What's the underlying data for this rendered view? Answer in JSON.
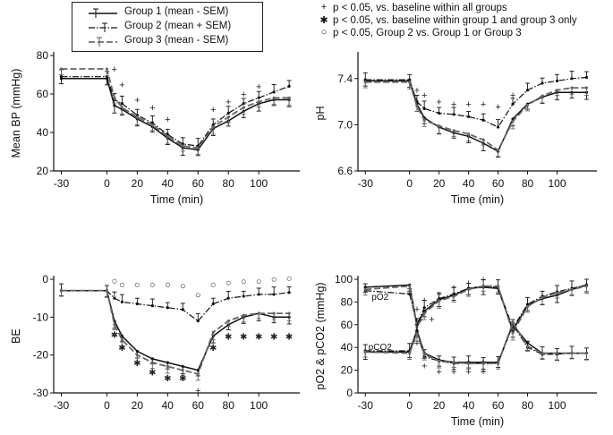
{
  "legend": {
    "items": [
      {
        "label": "Group 1 (mean  - SEM)",
        "style": "solid"
      },
      {
        "label": "Group 2 (mean  + SEM)",
        "style": "dashdot"
      },
      {
        "label": "Group 3 (mean  - SEM)",
        "style": "dashed"
      }
    ]
  },
  "significance_key": [
    {
      "symbol": "+",
      "label": "p < 0.05, vs. baseline within all groups"
    },
    {
      "symbol": "✱",
      "label": "p < 0.05, vs. baseline within group 1 and group 3 only"
    },
    {
      "symbol": "○",
      "label": "p < 0.05, Group 2 vs. Group 1 or Group 3"
    }
  ],
  "chart_data": [
    {
      "id": "bp",
      "type": "line",
      "xlabel": "Time (min)",
      "ylabel": "Mean BP (mmHg)",
      "xlim": [
        -35,
        127
      ],
      "ylim": [
        20,
        80
      ],
      "xticks": [
        -30,
        0,
        20,
        40,
        60,
        80,
        100
      ],
      "yticks": [
        20,
        40,
        60,
        80
      ],
      "x": [
        -30,
        0,
        5,
        10,
        20,
        30,
        40,
        50,
        60,
        70,
        80,
        90,
        100,
        110,
        120
      ],
      "series": [
        {
          "name": "Group 1",
          "values": [
            68,
            68,
            54,
            52,
            47,
            43,
            37,
            32,
            31,
            42,
            46,
            51,
            55,
            57,
            57
          ]
        },
        {
          "name": "Group 2",
          "values": [
            69,
            69,
            57,
            55,
            49,
            45,
            39,
            34,
            33,
            44,
            50,
            55,
            58,
            61,
            64
          ]
        },
        {
          "name": "Group 3",
          "values": [
            73,
            73,
            58,
            53,
            48,
            44,
            38,
            33,
            32,
            43,
            48,
            53,
            56,
            58,
            58
          ]
        }
      ],
      "annotations": [
        {
          "x": 5,
          "y": 73,
          "symbol": "+"
        },
        {
          "x": 10,
          "y": 65,
          "symbol": "+"
        },
        {
          "x": 20,
          "y": 57,
          "symbol": "+"
        },
        {
          "x": 30,
          "y": 53,
          "symbol": "+"
        },
        {
          "x": 40,
          "y": 47,
          "symbol": "+"
        },
        {
          "x": 70,
          "y": 52,
          "symbol": "+"
        },
        {
          "x": 80,
          "y": 56,
          "symbol": "+"
        },
        {
          "x": 90,
          "y": 60,
          "symbol": "+"
        },
        {
          "x": 100,
          "y": 64,
          "symbol": "+"
        }
      ]
    },
    {
      "id": "ph",
      "type": "line",
      "xlabel": "Time (min)",
      "ylabel": "pH",
      "xlim": [
        -35,
        127
      ],
      "ylim": [
        6.6,
        7.6
      ],
      "xticks": [
        -30,
        0,
        20,
        40,
        60,
        80,
        100
      ],
      "yticks": [
        6.6,
        7.0,
        7.4
      ],
      "x": [
        -30,
        0,
        5,
        10,
        20,
        30,
        40,
        50,
        60,
        70,
        80,
        90,
        100,
        110,
        120
      ],
      "series": [
        {
          "name": "Group 1",
          "values": [
            7.38,
            7.38,
            7.18,
            7.06,
            6.98,
            6.93,
            6.9,
            6.84,
            6.77,
            7.05,
            7.18,
            7.24,
            7.28,
            7.28,
            7.28
          ]
        },
        {
          "name": "Group 2",
          "values": [
            7.39,
            7.39,
            7.2,
            7.14,
            7.1,
            7.09,
            7.07,
            7.04,
            6.98,
            7.18,
            7.3,
            7.36,
            7.38,
            7.4,
            7.41
          ]
        },
        {
          "name": "Group 3",
          "values": [
            7.37,
            7.37,
            7.16,
            7.04,
            6.99,
            6.95,
            6.92,
            6.87,
            6.78,
            7.03,
            7.17,
            7.25,
            7.3,
            7.32,
            7.32
          ]
        }
      ],
      "annotations": [
        {
          "x": 5,
          "y": 7.3,
          "symbol": "+"
        },
        {
          "x": 10,
          "y": 7.26,
          "symbol": "+"
        },
        {
          "x": 20,
          "y": 7.2,
          "symbol": "+"
        },
        {
          "x": 30,
          "y": 7.18,
          "symbol": "+"
        },
        {
          "x": 40,
          "y": 7.18,
          "symbol": "+"
        },
        {
          "x": 50,
          "y": 7.18,
          "symbol": "+"
        },
        {
          "x": 60,
          "y": 7.16,
          "symbol": "+"
        },
        {
          "x": 70,
          "y": 7.26,
          "symbol": "+"
        }
      ]
    },
    {
      "id": "be",
      "type": "line",
      "xlabel": "",
      "ylabel": "BE",
      "xlim": [
        -35,
        127
      ],
      "ylim": [
        -30,
        0
      ],
      "xticks": [
        -30,
        0,
        20,
        40,
        60,
        80,
        100
      ],
      "yticks": [
        -30,
        -20,
        -10,
        0
      ],
      "x": [
        -30,
        0,
        5,
        10,
        20,
        30,
        40,
        50,
        60,
        70,
        80,
        90,
        100,
        110,
        120
      ],
      "series": [
        {
          "name": "Group 1",
          "values": [
            -3,
            -3,
            -11,
            -15,
            -19,
            -21,
            -22,
            -23,
            -24,
            -15,
            -12,
            -10,
            -9,
            -10,
            -10
          ]
        },
        {
          "name": "Group 2",
          "values": [
            -3,
            -3,
            -5,
            -6,
            -6.5,
            -7,
            -7.5,
            -8,
            -11,
            -6.5,
            -5,
            -4.5,
            -4,
            -4,
            -3.5
          ]
        },
        {
          "name": "Group 3",
          "values": [
            -3,
            -3,
            -12,
            -16,
            -20,
            -22,
            -23,
            -24,
            -25,
            -14,
            -11,
            -9.5,
            -9,
            -9,
            -9
          ]
        }
      ],
      "annotations": [
        {
          "x": 5,
          "y": -0.3,
          "symbol": "○"
        },
        {
          "x": 10,
          "y": -1.3,
          "symbol": "○"
        },
        {
          "x": 20,
          "y": -1.3,
          "symbol": "○"
        },
        {
          "x": 30,
          "y": -1.3,
          "symbol": "○"
        },
        {
          "x": 40,
          "y": -1.3,
          "symbol": "○"
        },
        {
          "x": 50,
          "y": -1.6,
          "symbol": "○"
        },
        {
          "x": 60,
          "y": -4,
          "symbol": "○"
        },
        {
          "x": 70,
          "y": -1.3,
          "symbol": "○"
        },
        {
          "x": 80,
          "y": -0.8,
          "symbol": "○"
        },
        {
          "x": 90,
          "y": -0.5,
          "symbol": "○"
        },
        {
          "x": 100,
          "y": -0.5,
          "symbol": "○"
        },
        {
          "x": 110,
          "y": 0.1,
          "symbol": "○"
        },
        {
          "x": 120,
          "y": 0.4,
          "symbol": "○"
        },
        {
          "x": 5,
          "y": -14.5,
          "symbol": "✱"
        },
        {
          "x": 10,
          "y": -18,
          "symbol": "✱"
        },
        {
          "x": 20,
          "y": -22,
          "symbol": "✱"
        },
        {
          "x": 30,
          "y": -24.5,
          "symbol": "✱"
        },
        {
          "x": 40,
          "y": -26,
          "symbol": "✱"
        },
        {
          "x": 50,
          "y": -26,
          "symbol": "✱"
        },
        {
          "x": 70,
          "y": -18,
          "symbol": "✱"
        },
        {
          "x": 80,
          "y": -15,
          "symbol": "✱"
        },
        {
          "x": 90,
          "y": -15,
          "symbol": "✱"
        },
        {
          "x": 100,
          "y": -15,
          "symbol": "✱"
        },
        {
          "x": 110,
          "y": -15,
          "symbol": "✱"
        },
        {
          "x": 120,
          "y": -15,
          "symbol": "✱"
        },
        {
          "x": 60,
          "y": -29.3,
          "symbol": "+"
        }
      ]
    },
    {
      "id": "gas",
      "type": "line",
      "xlabel": "Time (min)",
      "ylabel": "pO2 & pCO2 (mmHg)",
      "xlim": [
        -35,
        127
      ],
      "ylim": [
        0,
        100
      ],
      "xticks": [
        -30,
        0,
        20,
        40,
        60,
        80,
        100
      ],
      "yticks": [
        0,
        20,
        40,
        60,
        80,
        100
      ],
      "x": [
        -30,
        0,
        5,
        10,
        20,
        30,
        40,
        50,
        60,
        70,
        80,
        90,
        100,
        110,
        120
      ],
      "labels": [
        {
          "text": "pO2",
          "x": -20,
          "y": 85
        },
        {
          "text": "pCO2",
          "x": -20,
          "y": 41
        }
      ],
      "series": [
        {
          "name": "pO2 Group 1",
          "values": [
            93,
            95,
            60,
            72,
            82,
            86,
            92,
            93,
            92,
            55,
            77,
            83,
            86,
            91,
            95
          ]
        },
        {
          "name": "pO2 Group 2",
          "values": [
            90,
            87,
            60,
            75,
            83,
            87,
            92,
            94,
            93,
            57,
            78,
            85,
            89,
            92,
            95
          ]
        },
        {
          "name": "pO2 Group 3",
          "values": [
            91,
            94,
            58,
            70,
            81,
            85,
            91,
            94,
            94,
            53,
            76,
            84,
            88,
            91,
            94
          ]
        },
        {
          "name": "pCO2 Group 1",
          "values": [
            36,
            36,
            55,
            35,
            29,
            27,
            27,
            27,
            27,
            60,
            44,
            35,
            35,
            35,
            35
          ]
        },
        {
          "name": "pCO2 Group 2",
          "values": [
            37,
            37,
            55,
            32,
            28,
            26,
            26,
            26,
            26,
            60,
            40,
            34,
            34,
            35,
            35
          ]
        },
        {
          "name": "pCO2 Group 3",
          "values": [
            36,
            35,
            52,
            34,
            28,
            27,
            26,
            26,
            26,
            62,
            41,
            35,
            35,
            35,
            35
          ]
        }
      ],
      "annotations": [
        {
          "x": 10,
          "y": 82,
          "symbol": "+"
        },
        {
          "x": 20,
          "y": 87,
          "symbol": "+"
        },
        {
          "x": 30,
          "y": 93,
          "symbol": "+"
        },
        {
          "x": 40,
          "y": 97,
          "symbol": "+"
        },
        {
          "x": 50,
          "y": 100,
          "symbol": "+"
        },
        {
          "x": 5,
          "y": 74,
          "symbol": "+"
        },
        {
          "x": 10,
          "y": 24,
          "symbol": "+"
        },
        {
          "x": 20,
          "y": 19,
          "symbol": "+"
        },
        {
          "x": 30,
          "y": 19,
          "symbol": "+"
        },
        {
          "x": 40,
          "y": 19,
          "symbol": "+"
        },
        {
          "x": 50,
          "y": 19,
          "symbol": "+"
        },
        {
          "x": 5,
          "y": 44,
          "symbol": "+"
        },
        {
          "x": 7,
          "y": 64,
          "symbol": "+"
        },
        {
          "x": 15,
          "y": 65,
          "symbol": "+"
        }
      ]
    }
  ]
}
